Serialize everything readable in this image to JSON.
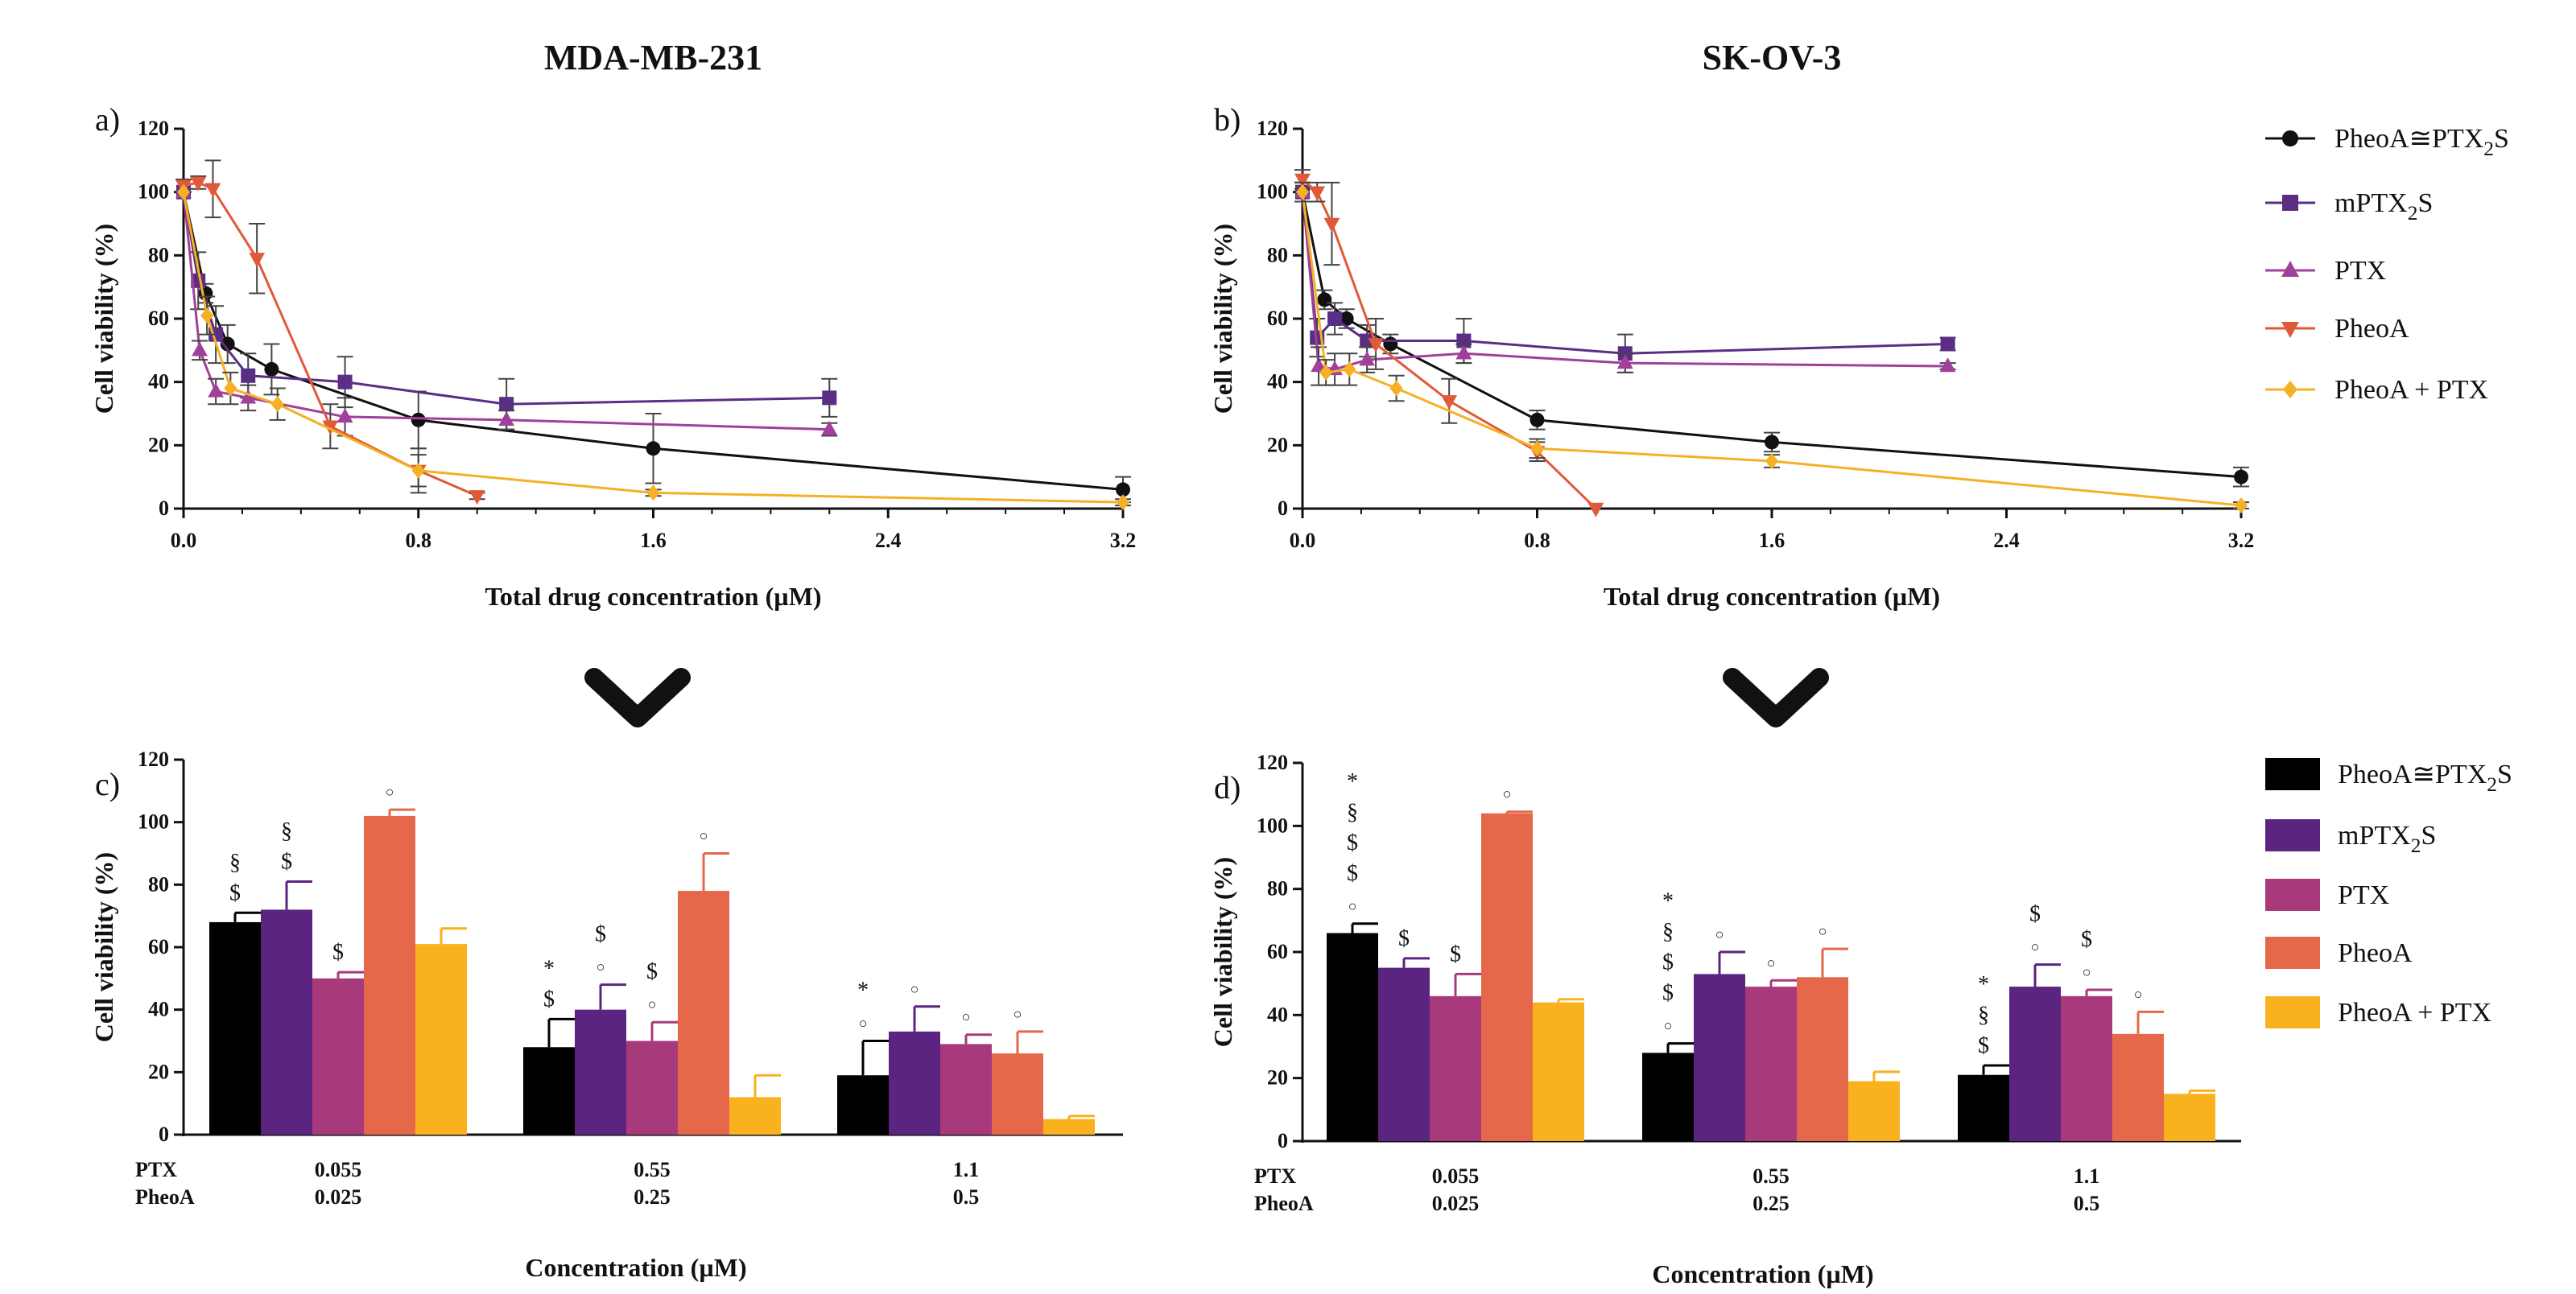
{
  "chart_data": [
    {
      "type": "line",
      "panel_label": "a)",
      "title": "MDA-MB-231",
      "xlabel": "Total drug concentration (µM)",
      "ylabel": "Cell viability (%)",
      "xlim": [
        0,
        3.2
      ],
      "ylim": [
        0,
        120
      ],
      "xticks": [
        "0.0",
        "0.8",
        "1.6",
        "2.4",
        "3.2"
      ],
      "yticks": [
        "0",
        "20",
        "40",
        "60",
        "80",
        "100",
        "120"
      ],
      "series": [
        {
          "name": "PheoA≅PTX2S",
          "color": "#111111",
          "marker": "circle",
          "points": [
            [
              0,
              100,
              0
            ],
            [
              0.075,
              68,
              3
            ],
            [
              0.15,
              52,
              6
            ],
            [
              0.3,
              44,
              8
            ],
            [
              0.8,
              28,
              9
            ],
            [
              1.6,
              19,
              11
            ],
            [
              3.2,
              6,
              4
            ]
          ]
        },
        {
          "name": "mPTX2S",
          "color": "#5b2e86",
          "marker": "square",
          "points": [
            [
              0,
              100,
              0
            ],
            [
              0.05,
              72,
              9
            ],
            [
              0.11,
              55,
              9
            ],
            [
              0.22,
              42,
              7
            ],
            [
              0.55,
              40,
              8
            ],
            [
              1.1,
              33,
              8
            ],
            [
              2.2,
              35,
              6
            ]
          ]
        },
        {
          "name": "PTX",
          "color": "#a0409a",
          "marker": "triangle-up",
          "points": [
            [
              0,
              100,
              0
            ],
            [
              0.055,
              50,
              3
            ],
            [
              0.11,
              37,
              4
            ],
            [
              0.22,
              35,
              4
            ],
            [
              0.55,
              29,
              6
            ],
            [
              1.1,
              28,
              3
            ],
            [
              2.2,
              25,
              2
            ]
          ]
        },
        {
          "name": "PheoA",
          "color": "#e05a3a",
          "marker": "triangle-down",
          "points": [
            [
              0,
              102,
              2
            ],
            [
              0.05,
              103,
              2
            ],
            [
              0.1,
              101,
              9
            ],
            [
              0.25,
              79,
              11
            ],
            [
              0.5,
              26,
              7
            ],
            [
              0.8,
              12,
              7
            ],
            [
              1.0,
              4,
              1
            ]
          ]
        },
        {
          "name": "PheoA + PTX",
          "color": "#f5b025",
          "marker": "diamond",
          "points": [
            [
              0,
              100,
              0
            ],
            [
              0.08,
              61,
              6
            ],
            [
              0.16,
              38,
              5
            ],
            [
              0.32,
              33,
              5
            ],
            [
              0.8,
              12,
              5
            ],
            [
              1.6,
              5,
              1
            ],
            [
              3.2,
              2,
              1
            ]
          ]
        }
      ]
    },
    {
      "type": "line",
      "panel_label": "b)",
      "title": "SK-OV-3",
      "xlabel": "Total drug concentration (µM)",
      "ylabel": "Cell viability (%)",
      "xlim": [
        0,
        3.2
      ],
      "ylim": [
        0,
        120
      ],
      "xticks": [
        "0.0",
        "0.8",
        "1.6",
        "2.4",
        "3.2"
      ],
      "yticks": [
        "0",
        "20",
        "40",
        "60",
        "80",
        "100",
        "120"
      ],
      "series": [
        {
          "name": "PheoA≅PTX2S",
          "color": "#111111",
          "marker": "circle",
          "points": [
            [
              0,
              100,
              3
            ],
            [
              0.075,
              66,
              3
            ],
            [
              0.15,
              60,
              3
            ],
            [
              0.3,
              52,
              3
            ],
            [
              0.8,
              28,
              3
            ],
            [
              1.6,
              21,
              3
            ],
            [
              3.2,
              10,
              3
            ]
          ]
        },
        {
          "name": "mPTX2S",
          "color": "#5b2e86",
          "marker": "square",
          "points": [
            [
              0,
              100,
              3
            ],
            [
              0.05,
              54,
              6
            ],
            [
              0.11,
              60,
              5
            ],
            [
              0.22,
              53,
              5
            ],
            [
              0.55,
              53,
              7
            ],
            [
              1.1,
              49,
              6
            ],
            [
              2.2,
              52,
              2
            ]
          ]
        },
        {
          "name": "PTX",
          "color": "#a0409a",
          "marker": "triangle-up",
          "points": [
            [
              0,
              100,
              3
            ],
            [
              0.055,
              45,
              6
            ],
            [
              0.11,
              44,
              5
            ],
            [
              0.22,
              47,
              4
            ],
            [
              0.55,
              49,
              3
            ],
            [
              1.1,
              46,
              3
            ],
            [
              2.2,
              45,
              1
            ]
          ]
        },
        {
          "name": "PheoA",
          "color": "#e05a3a",
          "marker": "triangle-down",
          "points": [
            [
              0,
              104,
              3
            ],
            [
              0.05,
              100,
              3
            ],
            [
              0.1,
              90,
              13
            ],
            [
              0.25,
              52,
              8
            ],
            [
              0.5,
              34,
              7
            ],
            [
              0.8,
              18,
              3
            ],
            [
              1.0,
              0,
              0
            ]
          ]
        },
        {
          "name": "PheoA + PTX",
          "color": "#f5b025",
          "marker": "diamond",
          "points": [
            [
              0,
              100,
              3
            ],
            [
              0.08,
              43,
              4
            ],
            [
              0.16,
              44,
              5
            ],
            [
              0.32,
              38,
              4
            ],
            [
              0.8,
              19,
              3
            ],
            [
              1.6,
              15,
              2
            ],
            [
              3.2,
              1,
              1
            ]
          ]
        }
      ]
    },
    {
      "type": "bar",
      "panel_label": "c)",
      "title": "",
      "xlabel": "Concentration (µM)",
      "ylabel": "Cell viability (%)",
      "ylim": [
        0,
        120
      ],
      "yticks": [
        "0",
        "20",
        "40",
        "60",
        "80",
        "100",
        "120"
      ],
      "row_labels": [
        "PTX",
        "PheoA"
      ],
      "categories": [
        {
          "ptx": "0.055",
          "pheoa": "0.025"
        },
        {
          "ptx": "0.55",
          "pheoa": "0.25"
        },
        {
          "ptx": "1.1",
          "pheoa": "0.5"
        }
      ],
      "series": [
        {
          "name": "PheoA≅PTX2S",
          "color": "#000000",
          "values": [
            68,
            28,
            19
          ],
          "errors": [
            3,
            9,
            11
          ],
          "annotations": [
            [
              "$",
              "§"
            ],
            [
              "$",
              "*"
            ],
            [
              "○",
              "*"
            ]
          ]
        },
        {
          "name": "mPTX2S",
          "color": "#5b2480",
          "values": [
            72,
            40,
            33
          ],
          "errors": [
            9,
            8,
            8
          ],
          "annotations": [
            [
              "$",
              "§"
            ],
            [
              "○",
              "$"
            ],
            [
              "○"
            ]
          ]
        },
        {
          "name": "PTX",
          "color": "#a83a7c",
          "values": [
            50,
            30,
            29
          ],
          "errors": [
            2,
            6,
            3
          ],
          "annotations": [
            [
              "$"
            ],
            [
              "○",
              "$"
            ],
            [
              "○"
            ]
          ]
        },
        {
          "name": "PheoA",
          "color": "#e6684a",
          "values": [
            102,
            78,
            26
          ],
          "errors": [
            2,
            12,
            7
          ],
          "annotations": [
            [
              "○"
            ],
            [
              "○"
            ],
            [
              "○"
            ]
          ]
        },
        {
          "name": "PheoA + PTX",
          "color": "#f9b21d",
          "values": [
            61,
            12,
            5
          ],
          "errors": [
            5,
            7,
            1
          ],
          "annotations": [
            [],
            [],
            []
          ]
        }
      ]
    },
    {
      "type": "bar",
      "panel_label": "d)",
      "title": "",
      "xlabel": "Concentration (µM)",
      "ylabel": "Cell viability (%)",
      "ylim": [
        0,
        120
      ],
      "yticks": [
        "0",
        "20",
        "40",
        "60",
        "80",
        "100",
        "120"
      ],
      "row_labels": [
        "PTX",
        "PheoA"
      ],
      "categories": [
        {
          "ptx": "0.055",
          "pheoa": "0.025"
        },
        {
          "ptx": "0.55",
          "pheoa": "0.25"
        },
        {
          "ptx": "1.1",
          "pheoa": "0.5"
        }
      ],
      "series": [
        {
          "name": "PheoA≅PTX2S",
          "color": "#000000",
          "values": [
            66,
            28,
            21
          ],
          "errors": [
            3,
            3,
            3
          ],
          "annotations": [
            [
              "○",
              "$",
              "$",
              "§",
              "*"
            ],
            [
              "○",
              "$",
              "$",
              "§",
              "*"
            ],
            [
              "$",
              "§",
              "*"
            ]
          ]
        },
        {
          "name": "mPTX2S",
          "color": "#5b2480",
          "values": [
            55,
            53,
            49
          ],
          "errors": [
            3,
            7,
            7
          ],
          "annotations": [
            [
              "$"
            ],
            [
              "○"
            ],
            [
              "○",
              "$"
            ]
          ]
        },
        {
          "name": "PTX",
          "color": "#a83a7c",
          "values": [
            46,
            49,
            46
          ],
          "errors": [
            7,
            2,
            2
          ],
          "annotations": [
            [
              "$"
            ],
            [
              "○"
            ],
            [
              "○",
              "$"
            ]
          ]
        },
        {
          "name": "PheoA",
          "color": "#e6684a",
          "values": [
            104,
            52,
            34
          ],
          "errors": [
            0.5,
            9,
            7
          ],
          "annotations": [
            [
              "○"
            ],
            [
              "○"
            ],
            [
              "○"
            ]
          ]
        },
        {
          "name": "PheoA + PTX",
          "color": "#f9b21d",
          "values": [
            44,
            19,
            15
          ],
          "errors": [
            1,
            3,
            1
          ],
          "annotations": [
            [],
            [],
            []
          ]
        }
      ]
    }
  ],
  "legend_top": [
    "PheoA≅PTX2S",
    "mPTX2S",
    "PTX",
    "PheoA",
    "PheoA + PTX"
  ],
  "legend_bottom": [
    "PheoA≅PTX2S",
    "mPTX2S",
    "PTX",
    "PheoA",
    "PheoA + PTX"
  ]
}
